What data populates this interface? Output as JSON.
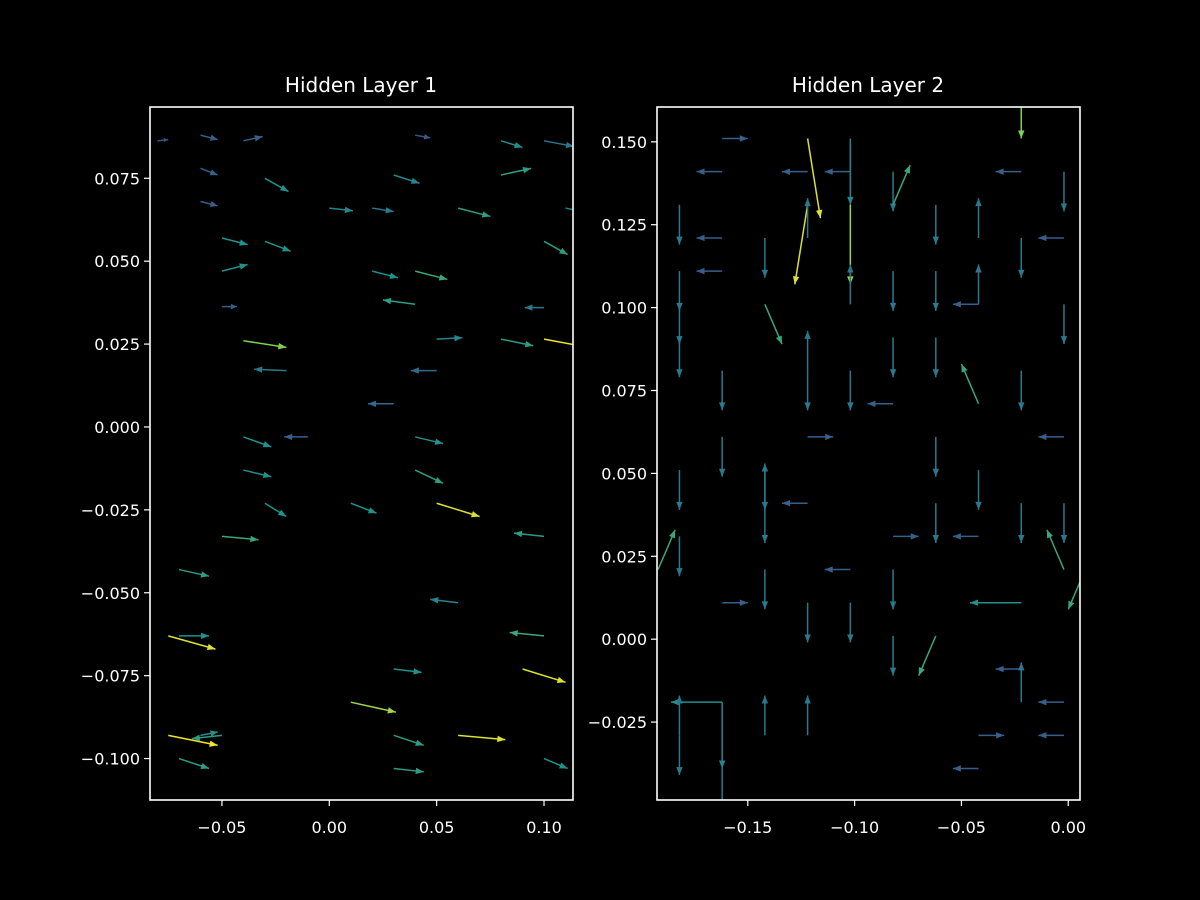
{
  "figure": {
    "background": "#000000",
    "foreground": "#ffffff",
    "colormap": "viridis"
  },
  "chart_data": [
    {
      "type": "quiver",
      "title": "Hidden Layer 1",
      "xlim": [
        -0.0835,
        0.1135
      ],
      "ylim": [
        -0.1125,
        0.0965
      ],
      "xticks": [
        -0.05,
        0.0,
        0.05,
        0.1
      ],
      "xtick_labels": [
        "−0.05",
        "0.00",
        "0.05",
        "0.10"
      ],
      "yticks": [
        0.075,
        0.05,
        0.025,
        0.0,
        -0.025,
        -0.05,
        -0.075,
        -0.1
      ],
      "ytick_labels": [
        "0.075",
        "0.050",
        "0.025",
        "0.000",
        "−0.025",
        "−0.050",
        "−0.075",
        "−0.100"
      ],
      "grid": false,
      "arrows": [
        {
          "x": -0.08,
          "y": 0.0863,
          "u": 0.005,
          "v": 0.0004,
          "m": 0.25
        },
        {
          "x": -0.06,
          "y": 0.088,
          "u": 0.008,
          "v": -0.0013,
          "m": 0.3
        },
        {
          "x": -0.04,
          "y": 0.0863,
          "u": 0.009,
          "v": 0.0013,
          "m": 0.3
        },
        {
          "x": 0.04,
          "y": 0.088,
          "u": 0.007,
          "v": -0.0008,
          "m": 0.28
        },
        {
          "x": 0.08,
          "y": 0.0863,
          "u": 0.01,
          "v": -0.002,
          "m": 0.48
        },
        {
          "x": 0.1,
          "y": 0.0863,
          "u": 0.014,
          "v": -0.0017,
          "m": 0.38
        },
        {
          "x": -0.06,
          "y": 0.078,
          "u": 0.008,
          "v": -0.002,
          "m": 0.3
        },
        {
          "x": -0.03,
          "y": 0.075,
          "u": 0.011,
          "v": -0.004,
          "m": 0.5
        },
        {
          "x": 0.03,
          "y": 0.076,
          "u": 0.012,
          "v": -0.0025,
          "m": 0.45
        },
        {
          "x": 0.08,
          "y": 0.076,
          "u": 0.014,
          "v": 0.002,
          "m": 0.55
        },
        {
          "x": -0.06,
          "y": 0.068,
          "u": 0.008,
          "v": -0.0013,
          "m": 0.3
        },
        {
          "x": 0.0,
          "y": 0.066,
          "u": 0.011,
          "v": -0.0008,
          "m": 0.45
        },
        {
          "x": 0.02,
          "y": 0.066,
          "u": 0.01,
          "v": -0.001,
          "m": 0.4
        },
        {
          "x": 0.06,
          "y": 0.066,
          "u": 0.015,
          "v": -0.0025,
          "m": 0.55
        },
        {
          "x": 0.11,
          "y": 0.066,
          "u": 0.008,
          "v": -0.001,
          "m": 0.4
        },
        {
          "x": -0.05,
          "y": 0.057,
          "u": 0.012,
          "v": -0.002,
          "m": 0.5
        },
        {
          "x": -0.03,
          "y": 0.056,
          "u": 0.012,
          "v": -0.003,
          "m": 0.5
        },
        {
          "x": 0.1,
          "y": 0.056,
          "u": 0.011,
          "v": -0.004,
          "m": 0.55
        },
        {
          "x": -0.05,
          "y": 0.047,
          "u": 0.012,
          "v": 0.002,
          "m": 0.5
        },
        {
          "x": 0.02,
          "y": 0.047,
          "u": 0.012,
          "v": -0.002,
          "m": 0.5
        },
        {
          "x": 0.04,
          "y": 0.047,
          "u": 0.015,
          "v": -0.0025,
          "m": 0.6
        },
        {
          "x": 0.04,
          "y": 0.037,
          "u": -0.015,
          "v": 0.0013,
          "m": 0.55
        },
        {
          "x": -0.05,
          "y": 0.0363,
          "u": 0.007,
          "v": 0.0,
          "m": 0.3
        },
        {
          "x": 0.1,
          "y": 0.036,
          "u": -0.009,
          "v": 0.0,
          "m": 0.4
        },
        {
          "x": -0.04,
          "y": 0.026,
          "u": 0.02,
          "v": -0.002,
          "m": 0.8
        },
        {
          "x": 0.05,
          "y": 0.0265,
          "u": 0.012,
          "v": 0.0004,
          "m": 0.45
        },
        {
          "x": 0.08,
          "y": 0.0265,
          "u": 0.015,
          "v": -0.002,
          "m": 0.55
        },
        {
          "x": 0.1,
          "y": 0.0265,
          "u": 0.025,
          "v": -0.003,
          "m": 0.98
        },
        {
          "x": -0.02,
          "y": 0.017,
          "u": -0.015,
          "v": 0.0004,
          "m": 0.4
        },
        {
          "x": 0.05,
          "y": 0.017,
          "u": -0.012,
          "v": 0.0,
          "m": 0.35
        },
        {
          "x": 0.03,
          "y": 0.007,
          "u": -0.012,
          "v": 0.0,
          "m": 0.35
        },
        {
          "x": -0.04,
          "y": -0.003,
          "u": 0.013,
          "v": -0.003,
          "m": 0.5
        },
        {
          "x": -0.01,
          "y": -0.003,
          "u": -0.011,
          "v": 0.0,
          "m": 0.3
        },
        {
          "x": 0.04,
          "y": -0.003,
          "u": 0.013,
          "v": -0.002,
          "m": 0.5
        },
        {
          "x": -0.04,
          "y": -0.013,
          "u": 0.013,
          "v": -0.002,
          "m": 0.5
        },
        {
          "x": 0.04,
          "y": -0.013,
          "u": 0.013,
          "v": -0.004,
          "m": 0.55
        },
        {
          "x": -0.03,
          "y": -0.023,
          "u": 0.01,
          "v": -0.004,
          "m": 0.5
        },
        {
          "x": 0.01,
          "y": -0.023,
          "u": 0.012,
          "v": -0.003,
          "m": 0.5
        },
        {
          "x": 0.05,
          "y": -0.023,
          "u": 0.02,
          "v": -0.004,
          "m": 0.95
        },
        {
          "x": -0.05,
          "y": -0.033,
          "u": 0.017,
          "v": -0.001,
          "m": 0.6
        },
        {
          "x": 0.1,
          "y": -0.033,
          "u": -0.014,
          "v": 0.001,
          "m": 0.55
        },
        {
          "x": -0.07,
          "y": -0.043,
          "u": 0.014,
          "v": -0.002,
          "m": 0.55
        },
        {
          "x": 0.06,
          "y": -0.053,
          "u": -0.013,
          "v": 0.001,
          "m": 0.45
        },
        {
          "x": -0.07,
          "y": -0.063,
          "u": 0.014,
          "v": 0.0,
          "m": 0.5
        },
        {
          "x": -0.075,
          "y": -0.063,
          "u": 0.022,
          "v": -0.004,
          "m": 0.95
        },
        {
          "x": 0.1,
          "y": -0.063,
          "u": -0.016,
          "v": 0.001,
          "m": 0.6
        },
        {
          "x": 0.03,
          "y": -0.073,
          "u": 0.013,
          "v": -0.001,
          "m": 0.5
        },
        {
          "x": 0.09,
          "y": -0.073,
          "u": 0.02,
          "v": -0.004,
          "m": 0.95
        },
        {
          "x": 0.01,
          "y": -0.083,
          "u": 0.021,
          "v": -0.003,
          "m": 0.85
        },
        {
          "x": -0.075,
          "y": -0.093,
          "u": 0.023,
          "v": -0.003,
          "m": 0.98
        },
        {
          "x": -0.05,
          "y": -0.093,
          "u": -0.014,
          "v": -0.001,
          "m": 0.55
        },
        {
          "x": 0.03,
          "y": -0.093,
          "u": 0.014,
          "v": -0.003,
          "m": 0.55
        },
        {
          "x": 0.06,
          "y": -0.093,
          "u": 0.022,
          "v": -0.0013,
          "m": 0.95
        },
        {
          "x": -0.07,
          "y": -0.1,
          "u": 0.014,
          "v": -0.003,
          "m": 0.55
        },
        {
          "x": 0.03,
          "y": -0.103,
          "u": 0.014,
          "v": -0.001,
          "m": 0.55
        },
        {
          "x": 0.1,
          "y": -0.1,
          "u": 0.011,
          "v": -0.003,
          "m": 0.5
        },
        {
          "x": -0.06,
          "y": -0.093,
          "u": 0.008,
          "v": 0.001,
          "m": 0.5
        }
      ]
    },
    {
      "type": "quiver",
      "title": "Hidden Layer 2",
      "xlim": [
        -0.1925,
        0.0055
      ],
      "ylim": [
        -0.0485,
        0.1605
      ],
      "xticks": [
        -0.15,
        -0.1,
        -0.05,
        0.0
      ],
      "xtick_labels": [
        "−0.15",
        "−0.10",
        "−0.05",
        "0.00"
      ],
      "yticks": [
        0.15,
        0.125,
        0.1,
        0.075,
        0.05,
        0.025,
        0.0,
        -0.025
      ],
      "ytick_labels": [
        "0.150",
        "0.125",
        "0.100",
        "0.075",
        "0.050",
        "0.025",
        "0.000",
        "−0.025"
      ],
      "grid": false,
      "arrows": [
        {
          "x": -0.162,
          "y": 0.151,
          "u": 0.012,
          "v": 0.0,
          "m": 0.3
        },
        {
          "x": -0.162,
          "y": 0.141,
          "u": -0.012,
          "v": 0.0,
          "m": 0.3
        },
        {
          "x": -0.122,
          "y": 0.141,
          "u": -0.012,
          "v": 0.0,
          "m": 0.3
        },
        {
          "x": -0.102,
          "y": 0.141,
          "u": -0.012,
          "v": 0.0,
          "m": 0.3
        },
        {
          "x": -0.022,
          "y": 0.141,
          "u": -0.012,
          "v": 0.0,
          "m": 0.3
        },
        {
          "x": -0.002,
          "y": 0.121,
          "u": -0.012,
          "v": 0.0,
          "m": 0.3
        },
        {
          "x": -0.162,
          "y": 0.121,
          "u": -0.012,
          "v": 0.0,
          "m": 0.3
        },
        {
          "x": -0.162,
          "y": 0.111,
          "u": -0.012,
          "v": 0.0,
          "m": 0.3
        },
        {
          "x": -0.102,
          "y": 0.151,
          "u": 0.0,
          "v": -0.02,
          "m": 0.45
        },
        {
          "x": -0.082,
          "y": 0.141,
          "u": 0.0,
          "v": -0.012,
          "m": 0.4
        },
        {
          "x": -0.182,
          "y": 0.131,
          "u": 0.0,
          "v": -0.012,
          "m": 0.4
        },
        {
          "x": -0.002,
          "y": 0.141,
          "u": 0.0,
          "v": -0.012,
          "m": 0.4
        },
        {
          "x": -0.122,
          "y": 0.151,
          "u": 0.006,
          "v": -0.024,
          "m": 0.95
        },
        {
          "x": -0.122,
          "y": 0.131,
          "u": -0.006,
          "v": -0.024,
          "m": 0.95
        },
        {
          "x": -0.102,
          "y": 0.131,
          "u": 0.0,
          "v": -0.024,
          "m": 0.85
        },
        {
          "x": -0.022,
          "y": 0.161,
          "u": 0.0,
          "v": -0.01,
          "m": 0.8
        },
        {
          "x": -0.082,
          "y": 0.131,
          "u": 0.008,
          "v": 0.012,
          "m": 0.6
        },
        {
          "x": -0.062,
          "y": 0.131,
          "u": 0.0,
          "v": -0.012,
          "m": 0.4
        },
        {
          "x": -0.042,
          "y": 0.121,
          "u": 0.0,
          "v": 0.012,
          "m": 0.4
        },
        {
          "x": -0.022,
          "y": 0.121,
          "u": 0.0,
          "v": -0.012,
          "m": 0.4
        },
        {
          "x": -0.142,
          "y": 0.121,
          "u": 0.0,
          "v": -0.012,
          "m": 0.4
        },
        {
          "x": -0.122,
          "y": 0.121,
          "u": 0.0,
          "v": 0.012,
          "m": 0.4
        },
        {
          "x": -0.182,
          "y": 0.111,
          "u": 0.0,
          "v": -0.012,
          "m": 0.4
        },
        {
          "x": -0.182,
          "y": 0.101,
          "u": 0.0,
          "v": -0.012,
          "m": 0.4
        },
        {
          "x": -0.182,
          "y": 0.091,
          "u": 0.0,
          "v": -0.012,
          "m": 0.4
        },
        {
          "x": -0.102,
          "y": 0.101,
          "u": 0.0,
          "v": 0.012,
          "m": 0.4
        },
        {
          "x": -0.082,
          "y": 0.111,
          "u": 0.0,
          "v": -0.012,
          "m": 0.4
        },
        {
          "x": -0.062,
          "y": 0.111,
          "u": 0.0,
          "v": -0.012,
          "m": 0.4
        },
        {
          "x": -0.042,
          "y": 0.101,
          "u": 0.0,
          "v": 0.012,
          "m": 0.4
        },
        {
          "x": -0.042,
          "y": 0.101,
          "u": -0.012,
          "v": 0.0,
          "m": 0.3
        },
        {
          "x": -0.002,
          "y": 0.101,
          "u": 0.0,
          "v": -0.012,
          "m": 0.4
        },
        {
          "x": -0.142,
          "y": 0.101,
          "u": 0.008,
          "v": -0.012,
          "m": 0.6
        },
        {
          "x": -0.082,
          "y": 0.091,
          "u": 0.0,
          "v": -0.012,
          "m": 0.4
        },
        {
          "x": -0.062,
          "y": 0.091,
          "u": 0.0,
          "v": -0.012,
          "m": 0.4
        },
        {
          "x": -0.162,
          "y": 0.081,
          "u": 0.0,
          "v": -0.012,
          "m": 0.4
        },
        {
          "x": -0.122,
          "y": 0.081,
          "u": 0.0,
          "v": 0.012,
          "m": 0.4
        },
        {
          "x": -0.122,
          "y": 0.081,
          "u": 0.0,
          "v": -0.012,
          "m": 0.4
        },
        {
          "x": -0.102,
          "y": 0.081,
          "u": 0.0,
          "v": -0.012,
          "m": 0.4
        },
        {
          "x": -0.022,
          "y": 0.081,
          "u": 0.0,
          "v": -0.012,
          "m": 0.4
        },
        {
          "x": -0.042,
          "y": 0.071,
          "u": -0.008,
          "v": 0.012,
          "m": 0.6
        },
        {
          "x": -0.082,
          "y": 0.071,
          "u": -0.012,
          "v": 0.0,
          "m": 0.3
        },
        {
          "x": -0.122,
          "y": 0.061,
          "u": 0.012,
          "v": 0.0,
          "m": 0.3
        },
        {
          "x": -0.002,
          "y": 0.061,
          "u": -0.012,
          "v": 0.0,
          "m": 0.3
        },
        {
          "x": -0.162,
          "y": 0.061,
          "u": 0.0,
          "v": -0.012,
          "m": 0.4
        },
        {
          "x": -0.062,
          "y": 0.061,
          "u": 0.0,
          "v": -0.012,
          "m": 0.4
        },
        {
          "x": -0.182,
          "y": 0.051,
          "u": 0.0,
          "v": -0.012,
          "m": 0.4
        },
        {
          "x": -0.142,
          "y": 0.051,
          "u": 0.0,
          "v": -0.012,
          "m": 0.4
        },
        {
          "x": -0.042,
          "y": 0.051,
          "u": 0.0,
          "v": -0.012,
          "m": 0.4
        },
        {
          "x": -0.122,
          "y": 0.041,
          "u": -0.012,
          "v": 0.0,
          "m": 0.3
        },
        {
          "x": -0.142,
          "y": 0.041,
          "u": 0.0,
          "v": 0.012,
          "m": 0.4
        },
        {
          "x": -0.142,
          "y": 0.041,
          "u": 0.0,
          "v": -0.012,
          "m": 0.4
        },
        {
          "x": -0.062,
          "y": 0.041,
          "u": 0.0,
          "v": -0.012,
          "m": 0.4
        },
        {
          "x": -0.022,
          "y": 0.041,
          "u": 0.0,
          "v": -0.012,
          "m": 0.4
        },
        {
          "x": -0.002,
          "y": 0.041,
          "u": 0.0,
          "v": -0.012,
          "m": 0.4
        },
        {
          "x": -0.082,
          "y": 0.031,
          "u": 0.012,
          "v": 0.0,
          "m": 0.3
        },
        {
          "x": -0.042,
          "y": 0.031,
          "u": -0.012,
          "v": 0.0,
          "m": 0.3
        },
        {
          "x": -0.182,
          "y": 0.031,
          "u": 0.0,
          "v": -0.012,
          "m": 0.4
        },
        {
          "x": -0.192,
          "y": 0.021,
          "u": 0.008,
          "v": 0.012,
          "m": 0.6
        },
        {
          "x": -0.002,
          "y": 0.021,
          "u": -0.008,
          "v": 0.012,
          "m": 0.6
        },
        {
          "x": 0.008,
          "y": 0.021,
          "u": -0.008,
          "v": -0.012,
          "m": 0.6
        },
        {
          "x": -0.102,
          "y": 0.021,
          "u": -0.012,
          "v": 0.0,
          "m": 0.3
        },
        {
          "x": -0.142,
          "y": 0.021,
          "u": 0.0,
          "v": -0.012,
          "m": 0.4
        },
        {
          "x": -0.082,
          "y": 0.021,
          "u": 0.0,
          "v": -0.012,
          "m": 0.4
        },
        {
          "x": -0.162,
          "y": 0.011,
          "u": 0.012,
          "v": 0.0,
          "m": 0.3
        },
        {
          "x": -0.022,
          "y": 0.011,
          "u": -0.024,
          "v": 0.0,
          "m": 0.5
        },
        {
          "x": -0.122,
          "y": 0.011,
          "u": 0.0,
          "v": -0.012,
          "m": 0.4
        },
        {
          "x": -0.102,
          "y": 0.011,
          "u": 0.0,
          "v": -0.012,
          "m": 0.4
        },
        {
          "x": -0.062,
          "y": 0.001,
          "u": -0.008,
          "v": -0.012,
          "m": 0.6
        },
        {
          "x": -0.082,
          "y": 0.001,
          "u": 0.0,
          "v": -0.012,
          "m": 0.4
        },
        {
          "x": -0.022,
          "y": -0.009,
          "u": -0.012,
          "v": 0.0,
          "m": 0.3
        },
        {
          "x": -0.022,
          "y": -0.019,
          "u": 0.0,
          "v": 0.012,
          "m": 0.4
        },
        {
          "x": -0.002,
          "y": -0.019,
          "u": -0.012,
          "v": 0.0,
          "m": 0.3
        },
        {
          "x": -0.162,
          "y": -0.019,
          "u": -0.024,
          "v": 0.0,
          "m": 0.5
        },
        {
          "x": -0.162,
          "y": -0.019,
          "u": 0.0,
          "v": -0.02,
          "m": 0.45
        },
        {
          "x": -0.042,
          "y": -0.029,
          "u": 0.012,
          "v": 0.0,
          "m": 0.3
        },
        {
          "x": -0.002,
          "y": -0.029,
          "u": -0.012,
          "v": 0.0,
          "m": 0.3
        },
        {
          "x": -0.182,
          "y": -0.029,
          "u": 0.0,
          "v": 0.012,
          "m": 0.4
        },
        {
          "x": -0.182,
          "y": -0.029,
          "u": 0.0,
          "v": -0.012,
          "m": 0.4
        },
        {
          "x": -0.142,
          "y": -0.029,
          "u": 0.0,
          "v": 0.012,
          "m": 0.4
        },
        {
          "x": -0.122,
          "y": -0.029,
          "u": 0.0,
          "v": 0.012,
          "m": 0.4
        },
        {
          "x": -0.042,
          "y": -0.039,
          "u": -0.012,
          "v": 0.0,
          "m": 0.3
        },
        {
          "x": -0.162,
          "y": -0.039,
          "u": 0.0,
          "v": -0.012,
          "m": 0.4
        }
      ]
    }
  ]
}
